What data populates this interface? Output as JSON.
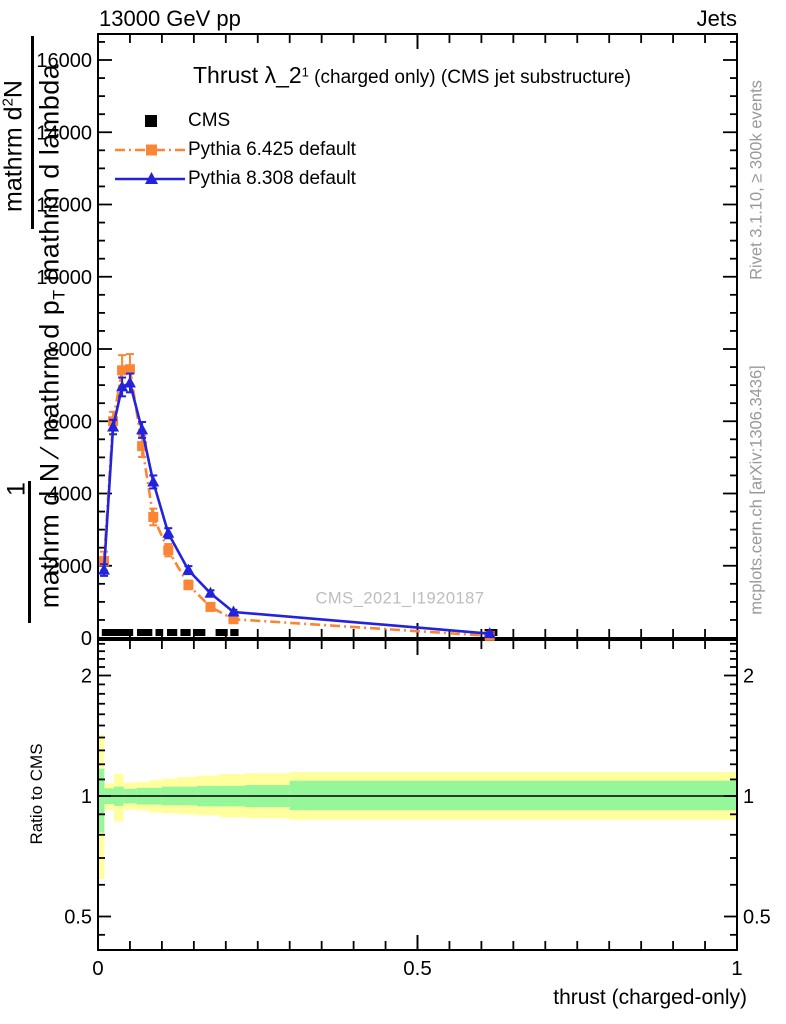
{
  "header": {
    "left": "13000 GeV pp",
    "right": "Jets"
  },
  "title": {
    "big": "Thrust λ_2",
    "sup": "1",
    "small": " (charged only) (CMS jet substructure)"
  },
  "legend": {
    "items": [
      {
        "label": "CMS",
        "marker": "square",
        "color": "#000000",
        "line_style": "none"
      },
      {
        "label": "Pythia 6.425 default",
        "marker": "square",
        "color": "#fc8535",
        "line_style": "dash-dot"
      },
      {
        "label": "Pythia 8.308 default",
        "marker": "triangle",
        "color": "#2323dd",
        "line_style": "solid"
      }
    ]
  },
  "watermark": "CMS_2021_I1920187",
  "side_notes": {
    "top_right": "Rivet 3.1.10, ≥ 300k events",
    "bottom_right": "mcplots.cern.ch [arXiv:1306.3436]"
  },
  "y_axis_garble": {
    "numerator_pre": "mathrm d",
    "numerator_sup": "2",
    "numerator_post": "N",
    "one": "1",
    "inner_pre": "mathrm d N ∕ mathrm d p",
    "inner_sub": "T",
    "inner_post": " mathrm d lambda"
  },
  "ratio_axis_label": "Ratio to CMS",
  "x_axis_label": "thrust (charged-only)",
  "colors": {
    "pythia6": "#fc8535",
    "pythia8": "#2323dd",
    "cms": "#000000",
    "band_yellow": "#ffff9e",
    "band_green": "#96f79a",
    "gray_text": "#999999",
    "watermark_gray": "#bdbdbd"
  },
  "chart_data": [
    {
      "type": "line",
      "title": "Thrust λ_2^1 (charged only) (CMS jet substructure)",
      "xlabel": "thrust (charged-only)",
      "ylabel": "1/N d^2N / d p_T d lambda",
      "xlim": [
        0,
        1
      ],
      "ylim": [
        0,
        16700
      ],
      "grid": false,
      "legend_position": "top-left",
      "yticks": [
        0,
        2000,
        4000,
        6000,
        8000,
        10000,
        12000,
        14000,
        16000
      ],
      "xticks": [
        0,
        0.5,
        1
      ],
      "x": [
        0.0094,
        0.0236,
        0.0377,
        0.05,
        0.069,
        0.0865,
        0.11,
        0.1415,
        0.176,
        0.212,
        0.613
      ],
      "series": [
        {
          "name": "Pythia 6.425 default",
          "values": [
            2130,
            6000,
            7410,
            7440,
            5310,
            3350,
            2430,
            1470,
            860,
            520,
            60
          ],
          "errors": [
            260,
            260,
            420,
            420,
            300,
            230,
            170,
            120,
            90,
            70,
            40
          ]
        },
        {
          "name": "Pythia 8.308 default",
          "values": [
            1880,
            5840,
            6950,
            7060,
            5760,
            4320,
            2900,
            1880,
            1240,
            720,
            120
          ],
          "errors": [
            160,
            200,
            260,
            260,
            220,
            180,
            140,
            110,
            80,
            60,
            40
          ]
        }
      ],
      "cms_segments": [
        [
          0.006,
          0.055
        ],
        [
          0.061,
          0.085
        ],
        [
          0.09,
          0.102
        ],
        [
          0.108,
          0.124
        ],
        [
          0.129,
          0.145
        ],
        [
          0.149,
          0.168
        ],
        [
          0.184,
          0.203
        ],
        [
          0.207,
          0.22
        ],
        [
          0.605,
          0.625
        ]
      ]
    },
    {
      "type": "ratio",
      "ylabel": "Ratio to CMS",
      "yscale": "log",
      "ylim": [
        0.413,
        2.45
      ],
      "yticks": [
        0.5,
        1,
        2
      ],
      "reference_line": 1,
      "bands": {
        "yellow": [
          [
            0,
            0.01,
            0.62,
            1.42
          ],
          [
            0.01,
            0.025,
            0.925,
            1.075
          ],
          [
            0.025,
            0.04,
            0.865,
            1.135
          ],
          [
            0.04,
            0.06,
            0.925,
            1.08
          ],
          [
            0.06,
            0.08,
            0.92,
            1.085
          ],
          [
            0.08,
            0.1,
            0.91,
            1.095
          ],
          [
            0.1,
            0.125,
            0.905,
            1.105
          ],
          [
            0.125,
            0.155,
            0.9,
            1.115
          ],
          [
            0.155,
            0.19,
            0.895,
            1.125
          ],
          [
            0.19,
            0.23,
            0.885,
            1.135
          ],
          [
            0.23,
            0.3,
            0.88,
            1.14
          ],
          [
            0.3,
            1.0,
            0.872,
            1.148
          ]
        ],
        "green": [
          [
            0,
            0.01,
            0.81,
            1.17
          ],
          [
            0.01,
            0.025,
            0.955,
            1.045
          ],
          [
            0.025,
            0.04,
            0.945,
            1.055
          ],
          [
            0.04,
            0.06,
            0.958,
            1.042
          ],
          [
            0.06,
            0.1,
            0.952,
            1.048
          ],
          [
            0.1,
            0.155,
            0.948,
            1.055
          ],
          [
            0.155,
            0.23,
            0.942,
            1.06
          ],
          [
            0.23,
            0.3,
            0.938,
            1.065
          ],
          [
            0.3,
            1.0,
            0.922,
            1.092
          ]
        ]
      }
    }
  ]
}
